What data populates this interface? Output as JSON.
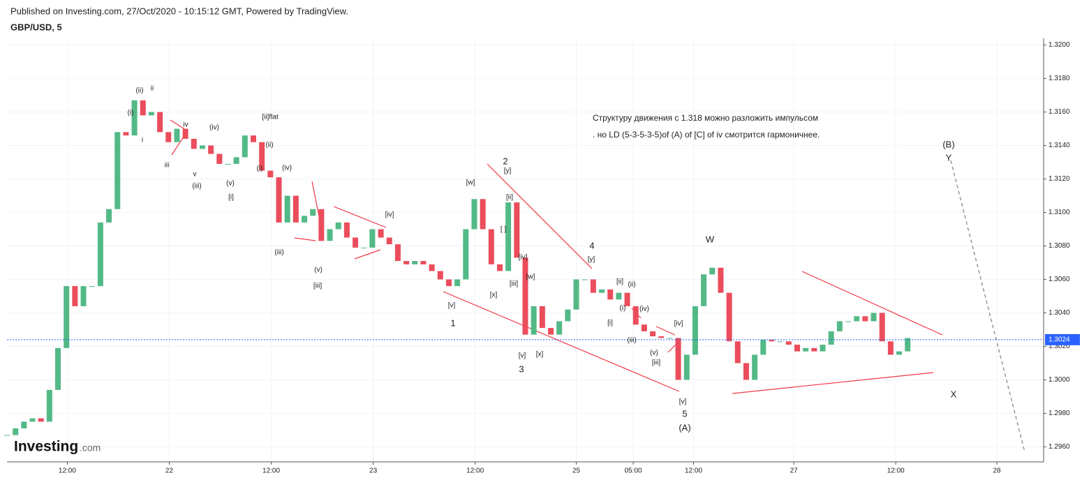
{
  "chart_data": {
    "type": "candlestick",
    "title": "GBP/USD, 5",
    "subtitle": "Published on Investing.com, 27/Oct/2020 - 10:15:12 GMT, Powered by TradingView.",
    "x": [
      0,
      1,
      2,
      3,
      4,
      5,
      6,
      7,
      8,
      9,
      10,
      11,
      12,
      13,
      14,
      15,
      16,
      17,
      18,
      19,
      20,
      21,
      22,
      23,
      24,
      25,
      26,
      27,
      28,
      29,
      30,
      31,
      32,
      33,
      34,
      35,
      36,
      37,
      38,
      39,
      40,
      41,
      42,
      43,
      44,
      45,
      46,
      47,
      48,
      49,
      50,
      51,
      52,
      53,
      54,
      55,
      56,
      57,
      58,
      59,
      60,
      61,
      62,
      63,
      64,
      65,
      66,
      67,
      68,
      69,
      70,
      71,
      72,
      73,
      74,
      75,
      76,
      77,
      78,
      79,
      80,
      81,
      82,
      83,
      84,
      85,
      86,
      87,
      88,
      89,
      90,
      91,
      92,
      93,
      94,
      95,
      96,
      97,
      98,
      99,
      100,
      101,
      102,
      103,
      104,
      105,
      106
    ],
    "values": [
      1.2967,
      1.2971,
      1.2975,
      1.2977,
      1.2975,
      1.2994,
      1.3019,
      1.3056,
      1.3044,
      1.3056,
      1.3056,
      1.3094,
      1.3102,
      1.3148,
      1.3146,
      1.3167,
      1.3158,
      1.316,
      1.3148,
      1.3142,
      1.315,
      1.3144,
      1.3138,
      1.314,
      1.3135,
      1.3129,
      1.3129,
      1.3133,
      1.3146,
      1.3142,
      1.3125,
      1.3121,
      1.3094,
      1.311,
      1.3094,
      1.3098,
      1.3102,
      1.3083,
      1.309,
      1.3094,
      1.3085,
      1.3079,
      1.3079,
      1.309,
      1.3085,
      1.3081,
      1.3071,
      1.3069,
      1.3071,
      1.3069,
      1.3065,
      1.306,
      1.3056,
      1.306,
      1.309,
      1.3108,
      1.309,
      1.3069,
      1.3065,
      1.3106,
      1.3073,
      1.3027,
      1.3044,
      1.3031,
      1.3027,
      1.3035,
      1.3042,
      1.306,
      1.306,
      1.3052,
      1.3054,
      1.3048,
      1.3052,
      1.3044,
      1.3033,
      1.3029,
      1.3026,
      1.3025,
      1.3025,
      1.3,
      1.3015,
      1.3044,
      1.3063,
      1.3067,
      1.3052,
      1.3023,
      1.301,
      1.3,
      1.3015,
      1.3024,
      1.3023,
      1.3023,
      1.3021,
      1.3017,
      1.3019,
      1.3017,
      1.3021,
      1.3029,
      1.3035,
      1.3035,
      1.3038,
      1.3035,
      1.304,
      1.3023,
      1.3015,
      1.3017,
      1.3025
    ],
    "up_color": "#53b987",
    "down_color": "#eb4d5c",
    "xlim": [
      0,
      122
    ],
    "ylim": [
      1.2951,
      1.3204
    ],
    "xticks": [
      {
        "value": 7.1,
        "label": "12:00"
      },
      {
        "value": 19.1,
        "label": "22"
      },
      {
        "value": 31.1,
        "label": "12:00"
      },
      {
        "value": 43.1,
        "label": "23"
      },
      {
        "value": 55.1,
        "label": "12:00"
      },
      {
        "value": 67,
        "label": "25"
      },
      {
        "value": 73.7,
        "label": "05:00"
      },
      {
        "value": 80.8,
        "label": "12:00"
      },
      {
        "value": 92.6,
        "label": "27"
      },
      {
        "value": 104.6,
        "label": "12:00"
      },
      {
        "value": 116.5,
        "label": "28"
      }
    ],
    "yticks": [
      {
        "value": 1.32,
        "label": "1.3200"
      },
      {
        "value": 1.318,
        "label": "1.3180"
      },
      {
        "value": 1.316,
        "label": "1.3160"
      },
      {
        "value": 1.314,
        "label": "1.3140"
      },
      {
        "value": 1.312,
        "label": "1.3120"
      },
      {
        "value": 1.31,
        "label": "1.3100"
      },
      {
        "value": 1.308,
        "label": "1.3080"
      },
      {
        "value": 1.306,
        "label": "1.3060"
      },
      {
        "value": 1.304,
        "label": "1.3040"
      },
      {
        "value": 1.302,
        "label": "1.3020"
      },
      {
        "value": 1.3,
        "label": "1.3000"
      },
      {
        "value": 1.298,
        "label": "1.2980"
      },
      {
        "value": 1.296,
        "label": "1.2960"
      }
    ],
    "grid": true,
    "last_price": 1.3024,
    "last_price_color": "#2962ff",
    "annotations": [
      "(ii)",
      "ii",
      "(i)",
      "i",
      "iv",
      "iii",
      "v",
      "(iii)",
      "(iv)",
      "(v)",
      "[i]",
      "[ii]flat",
      "(ii)",
      "(i)",
      "(iv)",
      "(iii)",
      "(v)",
      "[iii]",
      "[iv]",
      "[w]",
      "[ii]",
      "[ ]",
      "[iv]",
      "[w]",
      "[iii]",
      "[x]",
      "[v]",
      "1",
      "2",
      "[y]",
      "[v]",
      "3",
      "[x]",
      "4",
      "[y]",
      "[ii]",
      "(ii)",
      "(i)",
      "(iv)",
      "[i]",
      "(iii)",
      "[iv]",
      "(v)",
      "[iii]",
      "[v]",
      "5",
      "(A)",
      "W",
      "(B)",
      "Y",
      "X"
    ],
    "notes": [
      "Структуру движения с 1.318 можно разложить импульсом",
      ". но LD (5-3-5-3-5)of (A) of [C] of iv смотрится гармоничнее."
    ],
    "logo": {
      "name": "Investing",
      "suffix": ".com"
    }
  }
}
